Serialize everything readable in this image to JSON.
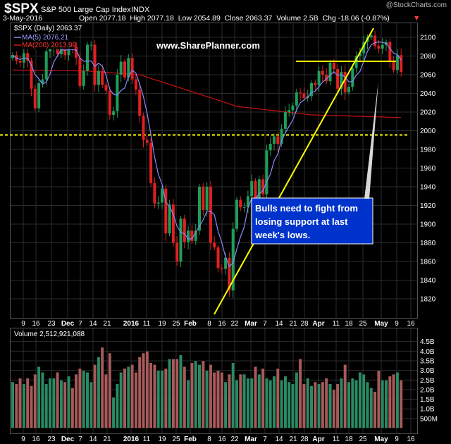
{
  "header": {
    "symbol": "$SPX",
    "name": "S&P 500 Large Cap Index",
    "exchange": "INDX",
    "watermark": "@StockCharts.com",
    "date": "3-May-2016",
    "ohlc": "Open 2077.18  High 2077.18  Low 2054.89  Close 2063.37  Volume 2.5B  Chg -18.06 (-0.87%)",
    "down_arrow": "▼"
  },
  "legend": {
    "main": "$SPX (Daily) 2063.37",
    "ma5": "MA(5) 2076.21",
    "ma200": "MA(200) 2013.99",
    "volume": "Volume 2,512,921,088"
  },
  "annotations": {
    "website": "www.SharePlanner.com",
    "note_lines": [
      "Bulls need to fight from",
      "losing support at last",
      "week's lows."
    ]
  },
  "colors": {
    "background": "#000000",
    "grid": "#2b2b2b",
    "up": "#1e9e5a",
    "down": "#e02020",
    "ma5": "#8a8aff",
    "ma200": "#cc1010",
    "trendline": "#ffff00",
    "note_bg": "#0033cc",
    "volume_up": "#2a8a63",
    "volume_down": "#a85a5a"
  },
  "chart_data": {
    "type": "candlestick",
    "price_axis": {
      "ylim": [
        1806,
        2116
      ],
      "ticks": [
        "2100",
        "2080",
        "2060",
        "2040",
        "2020",
        "2000",
        "1980",
        "1960",
        "1940",
        "1920",
        "1900",
        "1880",
        "1860",
        "1840",
        "1820"
      ]
    },
    "volume_axis": {
      "ylim": [
        0,
        4.6
      ],
      "ticks": [
        "4.5B",
        "4.0B",
        "3.5B",
        "3.0B",
        "2.5B",
        "2.0B",
        "1.5B",
        "1.0B",
        "500M"
      ]
    },
    "x_ticks": [
      {
        "label": "9",
        "bold": false
      },
      {
        "label": "16",
        "bold": false
      },
      {
        "label": "23",
        "bold": false
      },
      {
        "label": "Dec",
        "bold": true
      },
      {
        "label": "7",
        "bold": false
      },
      {
        "label": "14",
        "bold": false
      },
      {
        "label": "21",
        "bold": false
      },
      {
        "label": "2016",
        "bold": true
      },
      {
        "label": "11",
        "bold": false
      },
      {
        "label": "19",
        "bold": false
      },
      {
        "label": "25",
        "bold": false
      },
      {
        "label": "Feb",
        "bold": true
      },
      {
        "label": "8",
        "bold": false
      },
      {
        "label": "16",
        "bold": false
      },
      {
        "label": "22",
        "bold": false
      },
      {
        "label": "Mar",
        "bold": true
      },
      {
        "label": "7",
        "bold": false
      },
      {
        "label": "14",
        "bold": false
      },
      {
        "label": "21",
        "bold": false
      },
      {
        "label": "28",
        "bold": false
      },
      {
        "label": "Apr",
        "bold": true
      },
      {
        "label": "11",
        "bold": false
      },
      {
        "label": "18",
        "bold": false
      },
      {
        "label": "25",
        "bold": false
      },
      {
        "label": "May",
        "bold": true
      },
      {
        "label": "9",
        "bold": false
      },
      {
        "label": "16",
        "bold": false
      }
    ],
    "support_level": 1991,
    "resistance_level": 2073,
    "close": [
      2081,
      2075,
      2073,
      2083,
      2075,
      2045,
      2024,
      2051,
      2055,
      2085,
      2088,
      2090,
      2082,
      2090,
      2081,
      2092,
      2090,
      2078,
      2048,
      2064,
      2092,
      2092,
      2049,
      2064,
      2049,
      2043,
      2017,
      2021,
      2060,
      2074,
      2057,
      2078,
      2055,
      2044,
      2016,
      1990,
      1987,
      1944,
      1922,
      1923,
      1938,
      1890,
      1921,
      1880,
      1860,
      1906,
      1881,
      1893,
      1882,
      1893,
      1940,
      1915,
      1940,
      1880,
      1875,
      1853,
      1852,
      1864,
      1829,
      1895,
      1926,
      1918,
      1918,
      1930,
      1946,
      1922,
      1948,
      1932,
      1979,
      1986,
      1994,
      1986,
      2002,
      2020,
      2022,
      2027,
      2041,
      2040,
      2035,
      2037,
      2051,
      2049,
      2064,
      2060,
      2053,
      2073,
      2066,
      2045,
      2063,
      2041,
      2047,
      2067,
      2080,
      2083,
      2095,
      2100,
      2102,
      2091,
      2088,
      2092,
      2095,
      2075,
      2065,
      2081,
      2063
    ],
    "volume": [
      2.4,
      2.3,
      2.6,
      2.3,
      2.6,
      2.2,
      2.8,
      3.2,
      2.9,
      2.3,
      2.6,
      2.6,
      2.9,
      2.5,
      2.4,
      2.7,
      2.1,
      2.8,
      3.1,
      3.0,
      2.9,
      2.4,
      3.3,
      3.7,
      4.2,
      2.8,
      3.9,
      1.6,
      2.3,
      2.9,
      3.1,
      3.2,
      3.3,
      2.9,
      3.7,
      3.9,
      4.0,
      3.4,
      3.3,
      3.0,
      3.0,
      3.1,
      3.6,
      3.6,
      3.6,
      3.8,
      3.2,
      2.5,
      3.4,
      3.5,
      3.3,
      3.5,
      3.0,
      3.3,
      2.9,
      3.0,
      2.9,
      2.4,
      2.8,
      3.4,
      2.5,
      2.8,
      2.8,
      2.6,
      2.6,
      3.2,
      2.8,
      3.1,
      2.6,
      2.5,
      2.7,
      3.1,
      2.5,
      2.7,
      2.4,
      2.3,
      2.9,
      3.6,
      2.3,
      2.6,
      2.2,
      2.4,
      2.3,
      2.4,
      2.6,
      2.3,
      2.0,
      2.3,
      2.6,
      3.3,
      2.4,
      2.6,
      2.5,
      2.9,
      2.8,
      2.4,
      2.1,
      1.9,
      3.0,
      2.5,
      2.5,
      2.7,
      2.8,
      2.9,
      2.5
    ]
  }
}
